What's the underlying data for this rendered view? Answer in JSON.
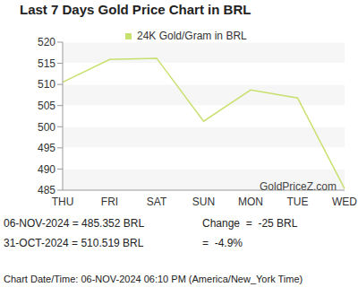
{
  "chart_data": {
    "type": "line",
    "title": "Last 7 Days Gold Price Chart in BRL",
    "categories": [
      "THU",
      "FRI",
      "SAT",
      "SUN",
      "MON",
      "TUE",
      "WED"
    ],
    "series": [
      {
        "name": "24K Gold/Gram in BRL",
        "color": "#c8e06e",
        "values": [
          510.519,
          515.9,
          516.2,
          501.3,
          508.7,
          506.8,
          485.352
        ]
      }
    ],
    "ylim": [
      485,
      520
    ],
    "yticks": [
      485,
      490,
      495,
      500,
      505,
      510,
      515,
      520
    ],
    "grid": true,
    "legend": "top",
    "annotations": {
      "watermark": "GoldPriceZ.com",
      "footer": [
        [
          "06-NOV-2024 = 485.352 BRL",
          "Change  =  -25 BRL"
        ],
        [
          "31-OCT-2024 = 510.519 BRL",
          "=  -4.9%"
        ]
      ],
      "chart_date": "Chart Date/Time: 06-NOV-2024 06:10 PM (America/New_York Time)"
    }
  }
}
